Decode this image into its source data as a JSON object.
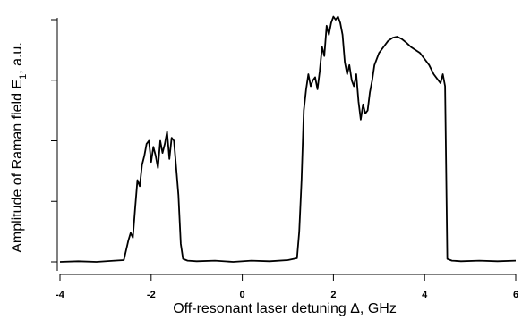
{
  "chart_data": {
    "type": "line",
    "xlabel": "Off-resonant laser detuning Δ, GHz",
    "ylabel_main": "Amplitude of Raman field E",
    "ylabel_sub": "1",
    "ylabel_tail": ", a.u.",
    "xlim": [
      -4,
      6
    ],
    "ylim": [
      0,
      4
    ],
    "x_ticks": [
      -4,
      -2,
      0,
      2,
      4,
      6
    ],
    "x_tick_labels": [
      "-4",
      "-2",
      "0",
      "2",
      "4",
      "6"
    ],
    "y_ticks": [
      0,
      1,
      2,
      3,
      4
    ],
    "y_tick_labels_shown": false,
    "grid": false,
    "series": [
      {
        "color": "#000000",
        "x": [
          -4.0,
          -3.6,
          -3.2,
          -2.8,
          -2.6,
          -2.5,
          -2.45,
          -2.4,
          -2.35,
          -2.3,
          -2.25,
          -2.2,
          -2.15,
          -2.1,
          -2.05,
          -2.0,
          -1.95,
          -1.9,
          -1.85,
          -1.8,
          -1.75,
          -1.7,
          -1.65,
          -1.6,
          -1.55,
          -1.5,
          -1.45,
          -1.4,
          -1.35,
          -1.3,
          -1.2,
          -1.0,
          -0.6,
          -0.2,
          0.2,
          0.6,
          1.0,
          1.2,
          1.25,
          1.3,
          1.35,
          1.4,
          1.45,
          1.5,
          1.55,
          1.6,
          1.65,
          1.7,
          1.75,
          1.8,
          1.85,
          1.9,
          1.95,
          2.0,
          2.05,
          2.1,
          2.15,
          2.2,
          2.25,
          2.3,
          2.35,
          2.4,
          2.45,
          2.5,
          2.55,
          2.6,
          2.65,
          2.7,
          2.75,
          2.8,
          2.85,
          2.9,
          3.0,
          3.1,
          3.2,
          3.3,
          3.4,
          3.5,
          3.6,
          3.7,
          3.8,
          3.9,
          4.0,
          4.1,
          4.2,
          4.3,
          4.35,
          4.4,
          4.45,
          4.5,
          4.6,
          4.8,
          5.2,
          5.6,
          6.0
        ],
        "y": [
          0.0,
          0.01,
          0.0,
          0.02,
          0.03,
          0.35,
          0.48,
          0.4,
          0.9,
          1.35,
          1.25,
          1.6,
          1.75,
          1.95,
          2.0,
          1.65,
          1.9,
          1.75,
          1.55,
          2.0,
          1.8,
          1.95,
          2.15,
          1.7,
          2.05,
          2.0,
          1.55,
          1.1,
          0.3,
          0.05,
          0.02,
          0.01,
          0.02,
          0.0,
          0.02,
          0.01,
          0.03,
          0.06,
          0.5,
          1.35,
          2.5,
          2.85,
          3.1,
          2.9,
          3.0,
          3.05,
          2.85,
          3.15,
          3.55,
          3.4,
          3.9,
          3.75,
          3.95,
          4.05,
          4.0,
          4.05,
          3.95,
          3.75,
          3.3,
          3.1,
          3.25,
          3.0,
          2.9,
          3.1,
          2.65,
          2.35,
          2.6,
          2.45,
          2.5,
          2.8,
          3.0,
          3.25,
          3.45,
          3.55,
          3.65,
          3.7,
          3.72,
          3.68,
          3.62,
          3.55,
          3.5,
          3.45,
          3.35,
          3.25,
          3.1,
          3.0,
          2.95,
          3.1,
          2.9,
          0.05,
          0.02,
          0.01,
          0.02,
          0.01,
          0.02
        ]
      }
    ]
  }
}
